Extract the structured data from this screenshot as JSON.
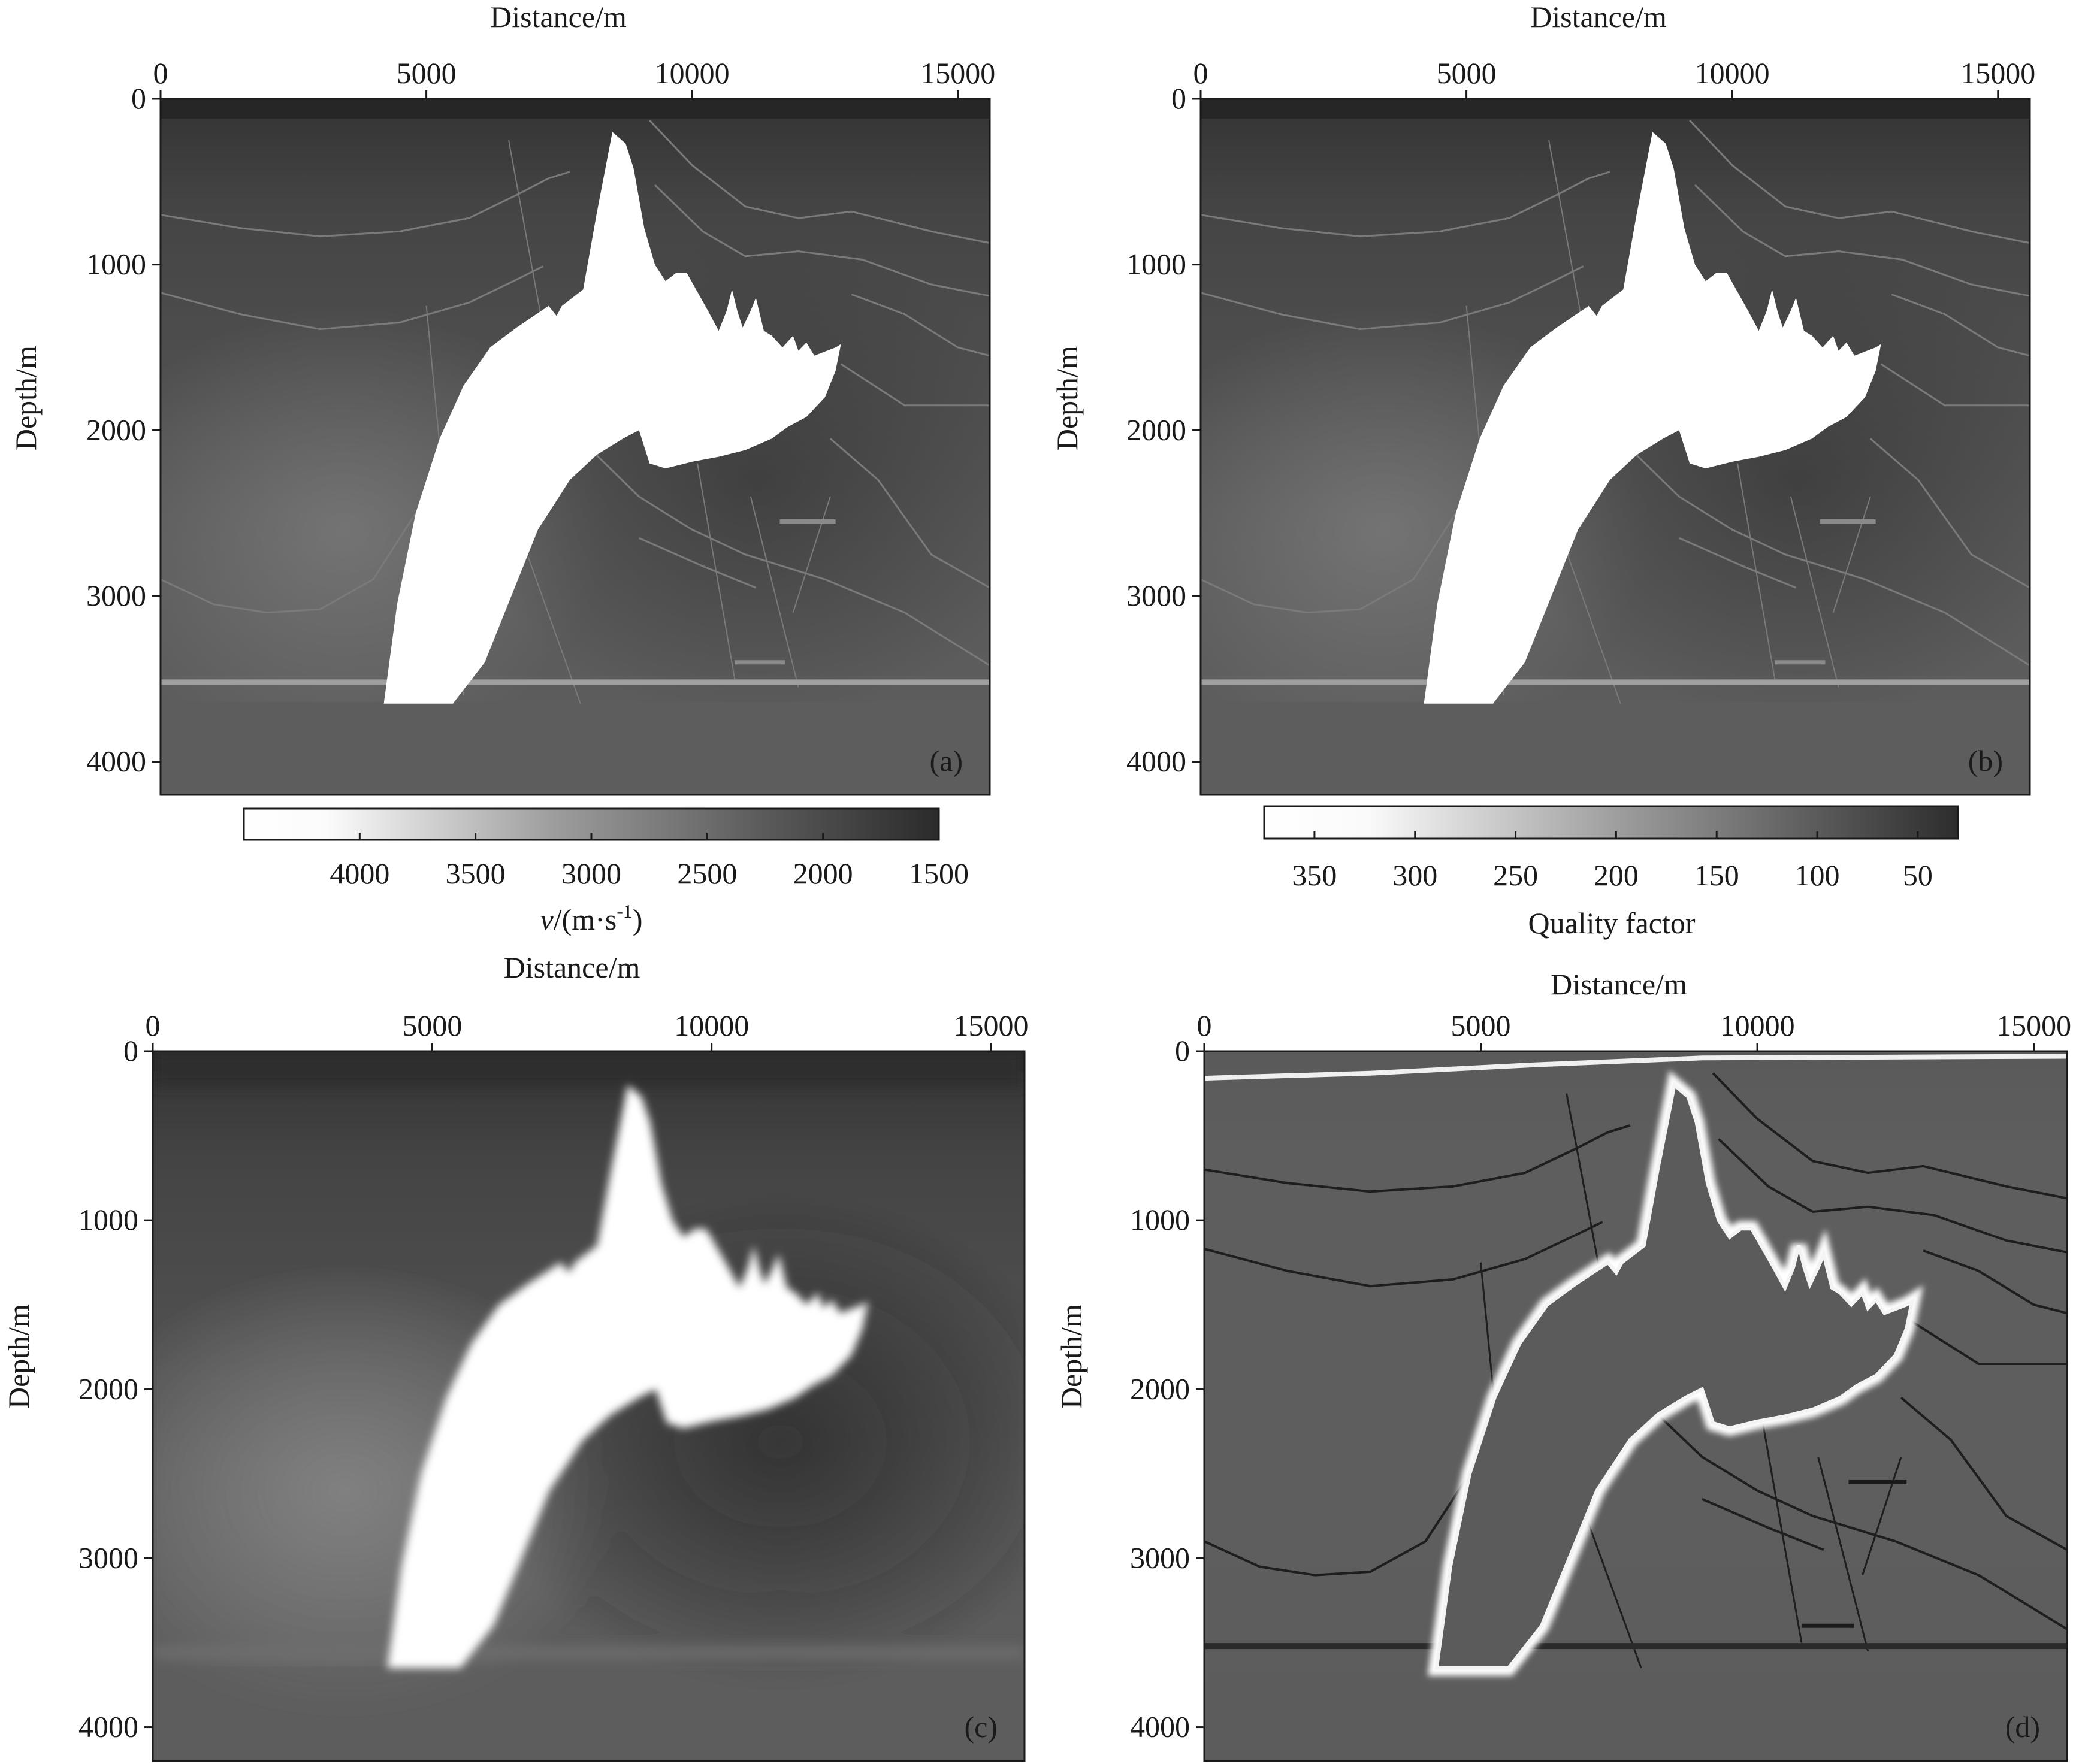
{
  "chart_data": [
    {
      "type": "heatmap",
      "panel_label": "(a)",
      "xlabel": "Distance/m",
      "ylabel": "Depth/m",
      "xlim": [
        0,
        15600
      ],
      "ylim": [
        0,
        4200
      ],
      "x_ticks": [
        "0",
        "5000",
        "10000",
        "15000"
      ],
      "x_tick_values": [
        0,
        5000,
        10000,
        15000
      ],
      "y_ticks": [
        "0",
        "1000",
        "2000",
        "3000",
        "4000"
      ],
      "y_tick_values": [
        0,
        1000,
        2000,
        3000,
        4000
      ],
      "colorbar": {
        "label_italic": "v",
        "label_rest": "/(m·s",
        "label_sup": "-1",
        "label_close": ")",
        "ticks": [
          "4000",
          "3500",
          "3000",
          "2500",
          "2000",
          "1500"
        ],
        "tick_values": [
          4000,
          3500,
          3000,
          2500,
          2000,
          1500
        ],
        "range": [
          4500,
          1500
        ]
      }
    },
    {
      "type": "heatmap",
      "panel_label": "(b)",
      "xlabel": "Distance/m",
      "ylabel": "Depth/m",
      "xlim": [
        0,
        15600
      ],
      "ylim": [
        0,
        4200
      ],
      "x_ticks": [
        "0",
        "5000",
        "10000",
        "15000"
      ],
      "x_tick_values": [
        0,
        5000,
        10000,
        15000
      ],
      "y_ticks": [
        "0",
        "1000",
        "2000",
        "3000",
        "4000"
      ],
      "y_tick_values": [
        0,
        1000,
        2000,
        3000,
        4000
      ],
      "colorbar": {
        "label": "Quality factor",
        "ticks": [
          "350",
          "300",
          "250",
          "200",
          "150",
          "100",
          "50"
        ],
        "tick_values": [
          350,
          300,
          250,
          200,
          150,
          100,
          50
        ],
        "range": [
          375,
          30
        ]
      }
    },
    {
      "type": "heatmap",
      "panel_label": "(c)",
      "xlabel": "Distance/m",
      "ylabel": "Depth/m",
      "xlim": [
        0,
        15600
      ],
      "ylim": [
        0,
        4200
      ],
      "x_ticks": [
        "0",
        "5000",
        "10000",
        "15000"
      ],
      "x_tick_values": [
        0,
        5000,
        10000,
        15000
      ],
      "y_ticks": [
        "0",
        "1000",
        "2000",
        "3000",
        "4000"
      ],
      "y_tick_values": [
        0,
        1000,
        2000,
        3000,
        4000
      ]
    },
    {
      "type": "heatmap",
      "panel_label": "(d)",
      "xlabel": "Distance/m",
      "ylabel": "Depth/m",
      "xlim": [
        0,
        15600
      ],
      "ylim": [
        0,
        4200
      ],
      "x_ticks": [
        "0",
        "5000",
        "10000",
        "15000"
      ],
      "x_tick_values": [
        0,
        5000,
        10000,
        15000
      ],
      "y_ticks": [
        "0",
        "1000",
        "2000",
        "3000",
        "4000"
      ],
      "y_tick_values": [
        0,
        1000,
        2000,
        3000,
        4000
      ]
    }
  ]
}
